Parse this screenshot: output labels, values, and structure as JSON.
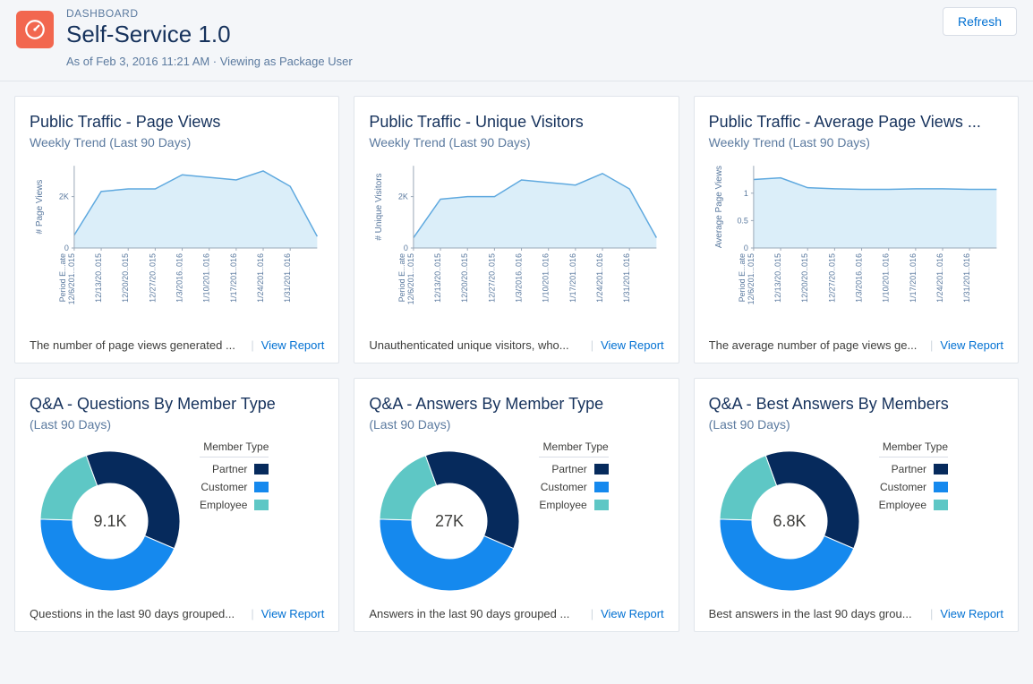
{
  "header": {
    "eyebrow": "DASHBOARD",
    "title": "Self-Service 1.0",
    "meta": "As of Feb 3, 2016 11:21 AM · Viewing as Package User",
    "refresh_label": "Refresh"
  },
  "colors": {
    "line": "#5fa9df",
    "area_fill": "#dbeef9",
    "axis": "#9aa8b8",
    "link": "#0070d2",
    "partner": "#062a5c",
    "customer": "#1589ee",
    "employee": "#5ec7c5"
  },
  "x_labels": [
    "Period E...ate",
    "12/6/201...015",
    "12/13/20..015",
    "12/20/20..015",
    "12/27/20..015",
    "1/3/2016..016",
    "1/10/201..016",
    "1/17/201..016",
    "1/24/201..016",
    "1/31/201..016"
  ],
  "cards": [
    {
      "id": "page-views",
      "title": "Public Traffic - Page Views",
      "subtitle": "Weekly Trend (Last 90 Days)",
      "type": "area",
      "y_title": "# Page Views",
      "y_ticks": [
        0,
        "2K"
      ],
      "y_max": 3200,
      "values": [
        500,
        2200,
        2300,
        2300,
        2850,
        2750,
        2650,
        3000,
        2400,
        450
      ],
      "desc": "The number of page views generated ...",
      "link_label": "View Report"
    },
    {
      "id": "unique-visitors",
      "title": "Public Traffic - Unique Visitors",
      "subtitle": "Weekly Trend (Last 90 Days)",
      "type": "area",
      "y_title": "# Unique Visitors",
      "y_ticks": [
        0,
        "2K"
      ],
      "y_max": 3200,
      "values": [
        400,
        1900,
        2000,
        2000,
        2650,
        2550,
        2450,
        2900,
        2300,
        400
      ],
      "desc": "Unauthenticated unique visitors, who...",
      "link_label": "View Report"
    },
    {
      "id": "avg-page-views",
      "title": "Public Traffic - Average Page Views ...",
      "subtitle": "Weekly Trend (Last 90 Days)",
      "type": "area",
      "y_title": "Average Page Views",
      "y_ticks": [
        0,
        0.5,
        1
      ],
      "y_max": 1.5,
      "values": [
        1.25,
        1.28,
        1.1,
        1.08,
        1.07,
        1.07,
        1.08,
        1.08,
        1.07,
        1.07
      ],
      "desc": "The average number of page views ge...",
      "link_label": "View Report"
    },
    {
      "id": "questions",
      "title": "Q&A - Questions By Member Type",
      "subtitle": "(Last 90 Days)",
      "type": "donut",
      "center": "9.1K",
      "legend_title": "Member Type",
      "segments": [
        {
          "label": "Partner",
          "color": "partner",
          "value": 37
        },
        {
          "label": "Customer",
          "color": "customer",
          "value": 44
        },
        {
          "label": "Employee",
          "color": "employee",
          "value": 19
        }
      ],
      "desc": "Questions in the last 90 days grouped...",
      "link_label": "View Report"
    },
    {
      "id": "answers",
      "title": "Q&A - Answers By Member Type",
      "subtitle": "(Last 90 Days)",
      "type": "donut",
      "center": "27K",
      "legend_title": "Member Type",
      "segments": [
        {
          "label": "Partner",
          "color": "partner",
          "value": 37
        },
        {
          "label": "Customer",
          "color": "customer",
          "value": 44
        },
        {
          "label": "Employee",
          "color": "employee",
          "value": 19
        }
      ],
      "desc": "Answers in the last 90 days grouped ...",
      "link_label": "View Report"
    },
    {
      "id": "best-answers",
      "title": "Q&A - Best Answers By Members",
      "subtitle": "(Last 90 Days)",
      "type": "donut",
      "center": "6.8K",
      "legend_title": "Member Type",
      "segments": [
        {
          "label": "Partner",
          "color": "partner",
          "value": 37
        },
        {
          "label": "Customer",
          "color": "customer",
          "value": 44
        },
        {
          "label": "Employee",
          "color": "employee",
          "value": 19
        }
      ],
      "desc": "Best answers in the last 90 days grou...",
      "link_label": "View Report"
    }
  ]
}
